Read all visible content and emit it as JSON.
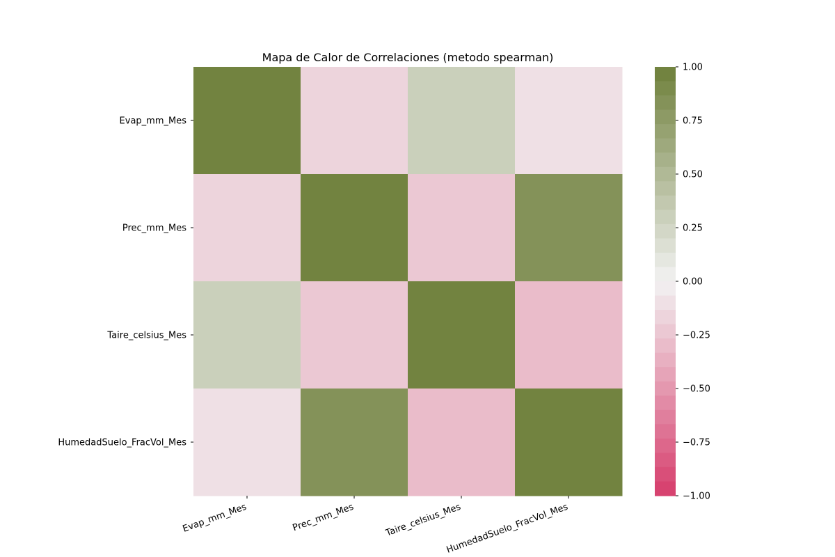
{
  "chart_data": {
    "type": "heatmap",
    "title": "Mapa de Calor de Correlaciones (metodo spearman)",
    "xlabel": "",
    "ylabel": "",
    "x_labels": [
      "Evap_mm_Mes",
      "Prec_mm_Mes",
      "Taire_celsius_Mes",
      "HumedadSuelo_FracVol_Mes"
    ],
    "y_labels": [
      "Evap_mm_Mes",
      "Prec_mm_Mes",
      "Taire_celsius_Mes",
      "HumedadSuelo_FracVol_Mes"
    ],
    "values": [
      [
        1.0,
        -0.16,
        0.3,
        -0.11
      ],
      [
        -0.16,
        1.0,
        -0.26,
        0.8
      ],
      [
        0.3,
        -0.26,
        1.0,
        -0.32
      ],
      [
        -0.11,
        0.8,
        -0.32,
        1.0
      ]
    ],
    "vmin": -1.0,
    "vmax": 1.0,
    "colorbar": {
      "ticks": [
        "1.00",
        "0.75",
        "0.50",
        "0.25",
        "0.00",
        "−0.25",
        "−0.50",
        "−0.75",
        "−1.00"
      ],
      "tick_values": [
        1.0,
        0.75,
        0.5,
        0.25,
        0.0,
        -0.25,
        -0.5,
        -0.75,
        -1.0
      ]
    },
    "colors": {
      "positive": "#6e7f3a",
      "center": "#f2f2f2",
      "negative": "#d63d6c"
    }
  }
}
